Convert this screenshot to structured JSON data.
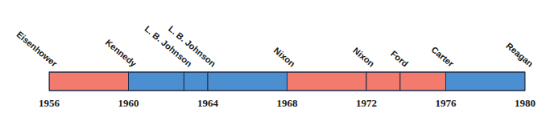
{
  "chart_data": {
    "type": "timeline",
    "categories": [
      "Eisenhower",
      "Kennedy",
      "L. B. Johnson",
      "L. B. Johnson",
      "Nixon",
      "Nixon",
      "Ford",
      "Carter",
      "Reagan"
    ],
    "x": [
      1956,
      1960,
      1962.8,
      1964,
      1968,
      1972,
      1973.7,
      1976,
      1980
    ],
    "colors": [
      "#f27b6e",
      "#4b8fd1",
      "#4b8fd1",
      "#4b8fd1",
      "#f27b6e",
      "#f27b6e",
      "#f27b6e",
      "#4b8fd1",
      null
    ],
    "xlim": [
      1956,
      1980
    ],
    "xticks": [
      1956,
      1960,
      1964,
      1968,
      1972,
      1976,
      1980
    ]
  }
}
